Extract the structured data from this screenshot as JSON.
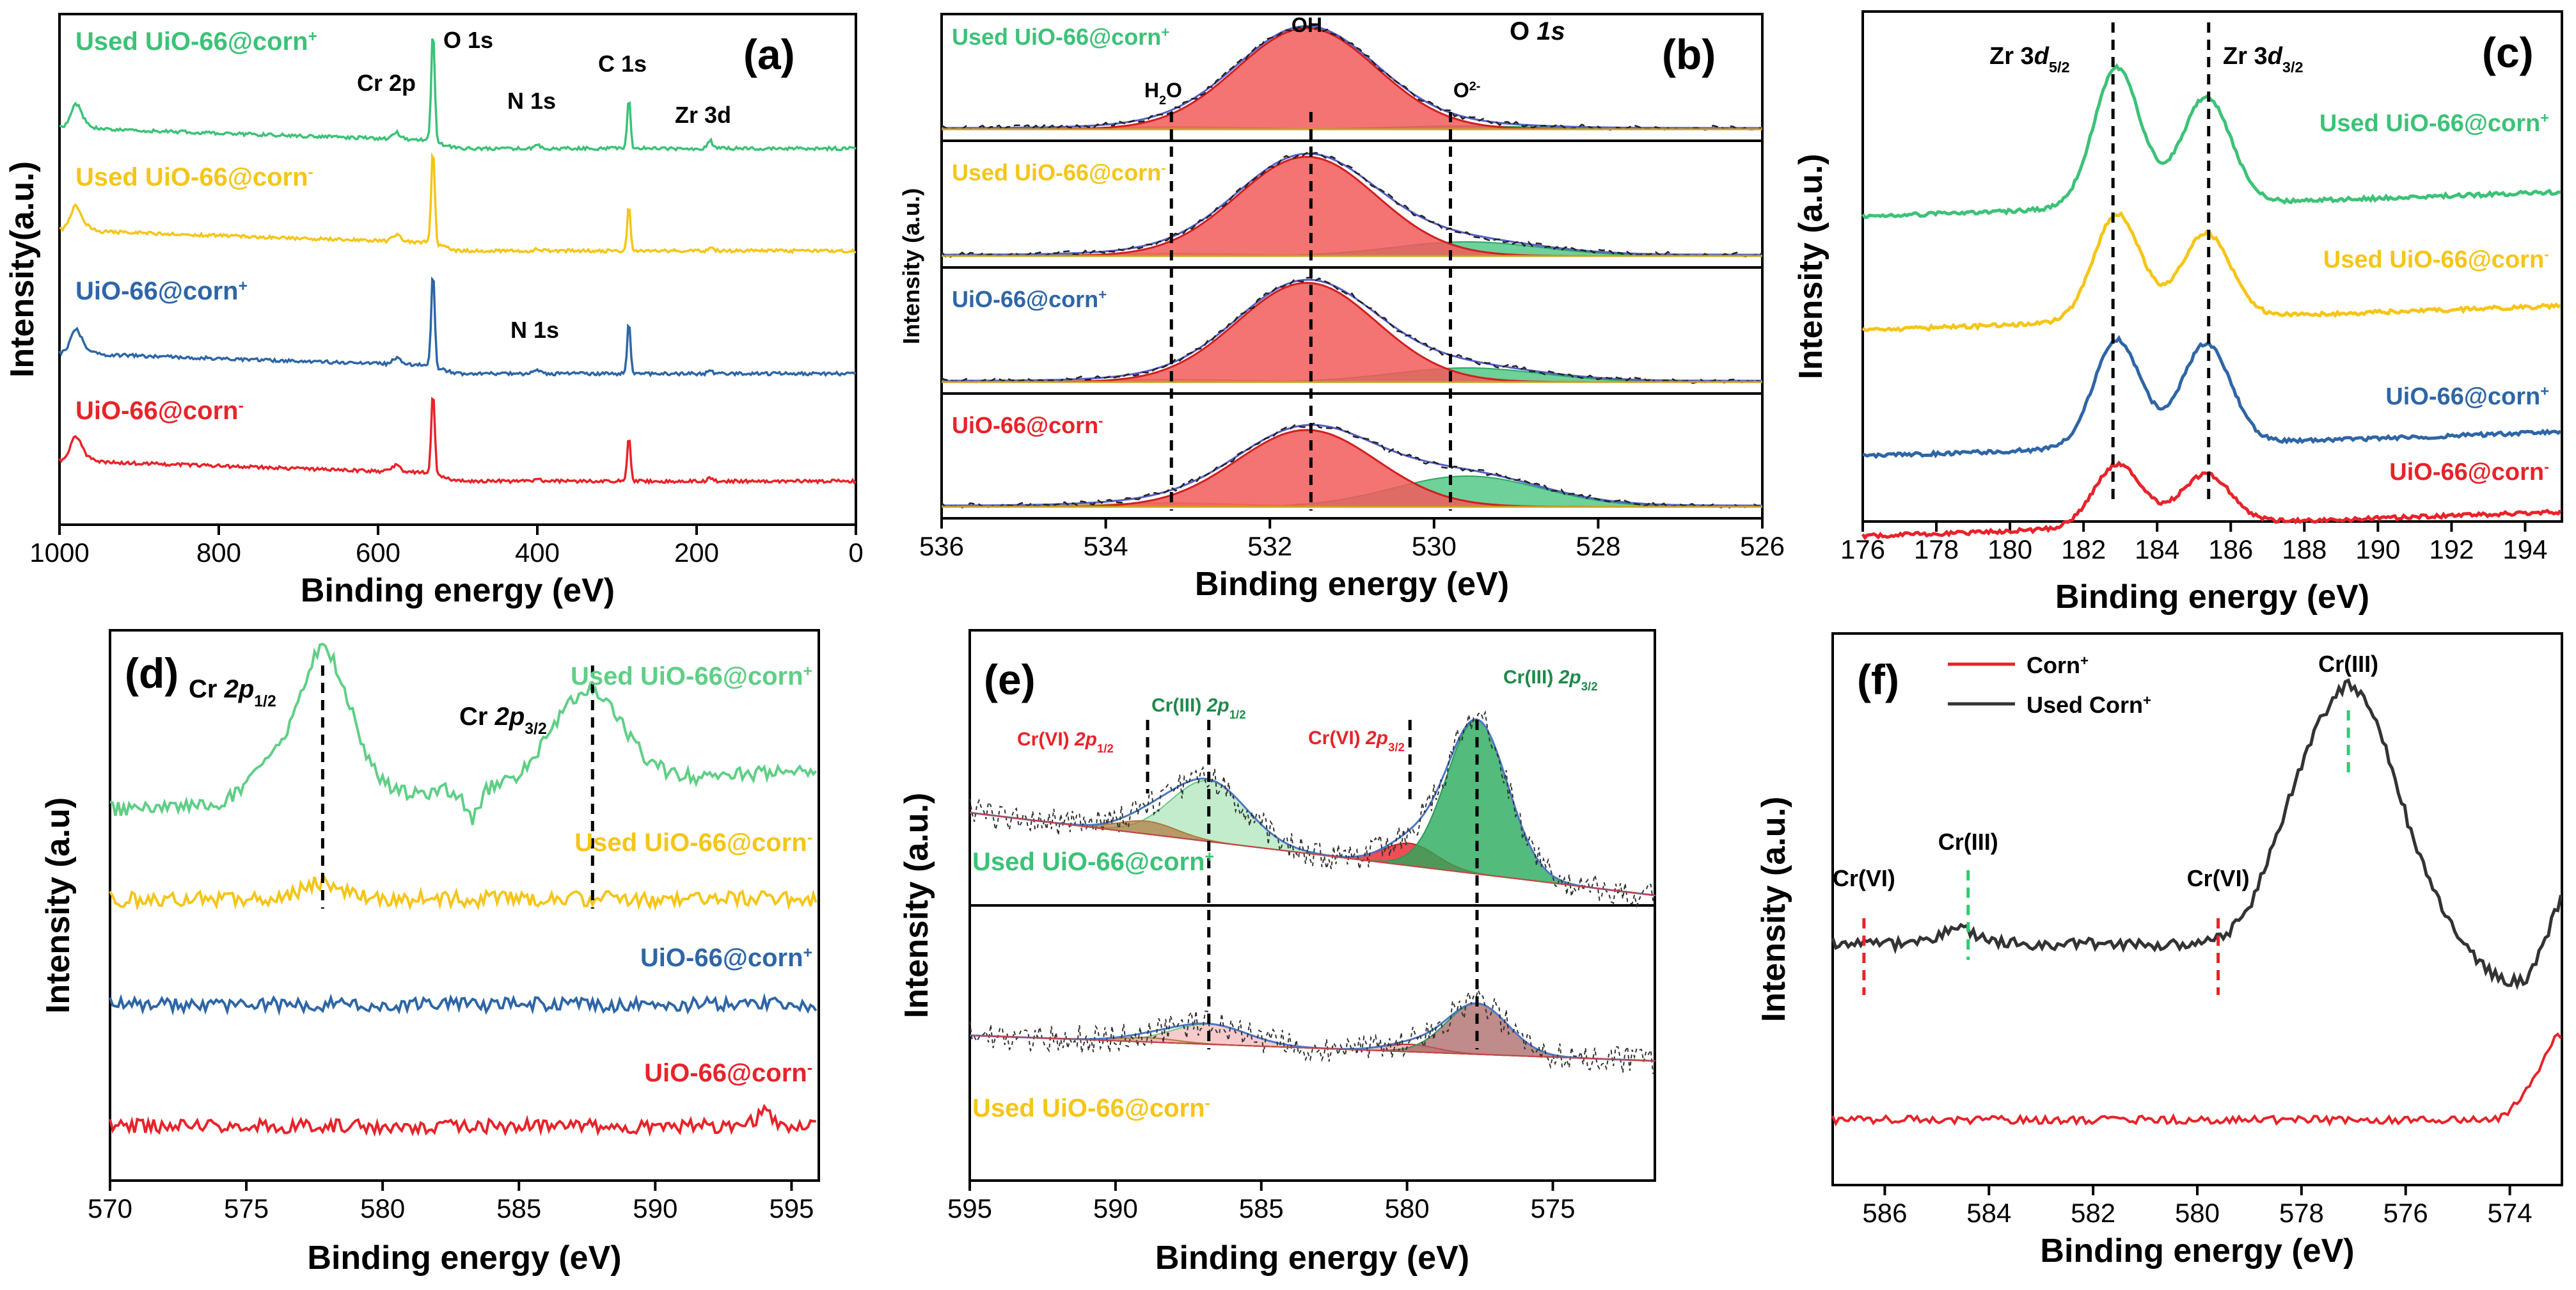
{
  "figure": {
    "colors": {
      "green": "#3cc277",
      "yellow": "#f5c518",
      "blue": "#2e66a6",
      "red": "#e8232a",
      "dark": "#333333",
      "lightgreen": "#5fcf86"
    }
  },
  "chart_data": [
    {
      "type": "line",
      "label": "(a)",
      "xlabel": "Binding energy (eV)",
      "ylabel": "Intensity(a.u.)",
      "xlim": [
        1000,
        0
      ],
      "xticks": [
        1000,
        800,
        600,
        400,
        200,
        0
      ],
      "series": [
        {
          "name": "Used UiO-66@corn+",
          "name_main": "Used UiO-66@corn",
          "name_sup": "+",
          "color": "green"
        },
        {
          "name": "Used UiO-66@corn-",
          "name_main": "Used UiO-66@corn",
          "name_sup": "-",
          "color": "yellow"
        },
        {
          "name": "UiO-66@corn+",
          "name_main": "UiO-66@corn",
          "name_sup": "+",
          "color": "blue"
        },
        {
          "name": "UiO-66@corn-",
          "name_main": "UiO-66@corn",
          "name_sup": "-",
          "color": "red"
        }
      ],
      "peaks": [
        {
          "label": "O 1s",
          "x": 531
        },
        {
          "label": "C 1s",
          "x": 285
        },
        {
          "label": "Cr 2p",
          "x": 577
        },
        {
          "label": "N 1s",
          "x": 400
        },
        {
          "label": "Zr 3d",
          "x": 183
        }
      ],
      "annotations": [
        "Cr 2p",
        "O 1s",
        "N 1s",
        "C 1s",
        "Zr 3d",
        "N 1s"
      ]
    },
    {
      "type": "line",
      "label": "(b)",
      "xlabel": "Binding energy (eV)",
      "ylabel": "Intensity (a.u.)",
      "xlim": [
        536,
        526
      ],
      "xticks": [
        536,
        534,
        532,
        530,
        528,
        526
      ],
      "title": "O 1s",
      "title_main": "O ",
      "title_it": "1s",
      "components": [
        {
          "name": "OH",
          "center": 531.5,
          "color": "#f26b6b"
        },
        {
          "name": "H2O",
          "center": 533.2,
          "color": "#c8a24a"
        },
        {
          "name": "O2-",
          "center": 529.8,
          "color": "#3cc277"
        }
      ],
      "component_labels": {
        "oh": "OH",
        "h2o_main": "H",
        "h2o_sub": "2",
        "h2o_tail": "O",
        "o2_main": "O",
        "o2_sup": "2-"
      },
      "dashed_lines": [
        533.2,
        531.5,
        529.8
      ],
      "series": [
        {
          "name": "Used UiO-66@corn+",
          "name_main": "Used UiO-66@corn",
          "name_sup": "+",
          "color": "green"
        },
        {
          "name": "Used UiO-66@corn-",
          "name_main": "Used UiO-66@corn",
          "name_sup": "-",
          "color": "yellow"
        },
        {
          "name": "UiO-66@corn+",
          "name_main": "UiO-66@corn",
          "name_sup": "+",
          "color": "blue"
        },
        {
          "name": "UiO-66@corn-",
          "name_main": "UiO-66@corn",
          "name_sup": "-",
          "color": "red"
        }
      ]
    },
    {
      "type": "line",
      "label": "(c)",
      "xlabel": "Binding energy (eV)",
      "ylabel": "Intensity (a.u.)",
      "xlim": [
        176,
        195
      ],
      "xticks": [
        176,
        178,
        180,
        182,
        184,
        186,
        188,
        190,
        192,
        194
      ],
      "dashed_lines": [
        182.8,
        185.4
      ],
      "peak_labels": [
        {
          "main": "Zr 3",
          "it": "d",
          "sub": "5/2",
          "x": 182.8
        },
        {
          "main": "Zr 3",
          "it": "d",
          "sub": "3/2",
          "x": 185.4
        }
      ],
      "series": [
        {
          "name": "Used UiO-66@corn+",
          "name_main": "Used UiO-66@corn",
          "name_sup": "+",
          "color": "green"
        },
        {
          "name": "Used UiO-66@corn-",
          "name_main": "Used UiO-66@corn",
          "name_sup": "-",
          "color": "yellow"
        },
        {
          "name": "UiO-66@corn+",
          "name_main": "UiO-66@corn",
          "name_sup": "+",
          "color": "blue"
        },
        {
          "name": "UiO-66@corn-",
          "name_main": "UiO-66@corn",
          "name_sup": "-",
          "color": "red"
        }
      ]
    },
    {
      "type": "line",
      "label": "(d)",
      "xlabel": "Binding energy (eV)",
      "ylabel": "Intensity (a.u)",
      "xlim": [
        570,
        596
      ],
      "xticks": [
        570,
        575,
        580,
        585,
        590,
        595
      ],
      "dashed_lines": [
        577.8,
        587.7
      ],
      "peak_labels": [
        {
          "main": "Cr ",
          "it": "2p",
          "sub": "1/2",
          "x": 577.8
        },
        {
          "main": "Cr ",
          "it": "2p",
          "sub": "3/2",
          "x": 587.7
        }
      ],
      "series": [
        {
          "name": "Used UiO-66@corn+",
          "name_main": "Used UiO-66@corn",
          "name_sup": "+",
          "color": "lightgreen"
        },
        {
          "name": "Used UiO-66@corn-",
          "name_main": "Used UiO-66@corn",
          "name_sup": "-",
          "color": "yellow"
        },
        {
          "name": "UiO-66@corn+",
          "name_main": "UiO-66@corn",
          "name_sup": "+",
          "color": "blue"
        },
        {
          "name": "UiO-66@corn-",
          "name_main": "UiO-66@corn",
          "name_sup": "-",
          "color": "red"
        }
      ]
    },
    {
      "type": "line",
      "label": "(e)",
      "xlabel": "Binding energy (eV)",
      "ylabel": "Intensity (a.u.)",
      "xlim": [
        595,
        571.5
      ],
      "xticks": [
        595,
        590,
        585,
        580,
        575
      ],
      "dashed_lines": [
        588.9,
        586.8,
        579.9,
        577.6
      ],
      "peak_labels": [
        {
          "main": "Cr(VI) ",
          "it": "2p",
          "sub": "1/2",
          "color": "#e8232a"
        },
        {
          "main": "Cr(III) ",
          "it": "2p",
          "sub": "1/2",
          "color": "#1e8a4a"
        },
        {
          "main": "Cr(VI) ",
          "it": "2p",
          "sub": "3/2",
          "color": "#e8232a"
        },
        {
          "main": "Cr(III) ",
          "it": "2p",
          "sub": "3/2",
          "color": "#1e8a4a"
        }
      ],
      "series": [
        {
          "name": "Used UiO-66@corn+",
          "name_main": "Used UiO-66@corn",
          "name_sup": "+",
          "color": "green"
        },
        {
          "name": "Used UiO-66@corn-",
          "name_main": "Used UiO-66@corn",
          "name_sup": "-",
          "color": "yellow"
        }
      ]
    },
    {
      "type": "line",
      "label": "(f)",
      "xlabel": "Binding energy (eV)",
      "ylabel": "Intensity (a.u.)",
      "xlim": [
        587,
        573
      ],
      "xticks": [
        586,
        584,
        582,
        580,
        578,
        576,
        574
      ],
      "legend": [
        {
          "main": "Corn",
          "sup": "+",
          "color": "red"
        },
        {
          "main": "Used Corn",
          "sup": "+",
          "color": "dark"
        }
      ],
      "markers": [
        {
          "label": "Cr(VI)",
          "x": 586.4,
          "color": "#e8232a"
        },
        {
          "label": "Cr(III)",
          "x": 584.4,
          "color": "#2ecc71"
        },
        {
          "label": "Cr(VI)",
          "x": 579.6,
          "color": "#e8232a"
        },
        {
          "label": "Cr(III)",
          "x": 577.1,
          "color": "#2ecc71"
        }
      ],
      "series": [
        {
          "name": "Used Corn+",
          "color": "dark"
        },
        {
          "name": "Corn+",
          "color": "red"
        }
      ]
    }
  ]
}
